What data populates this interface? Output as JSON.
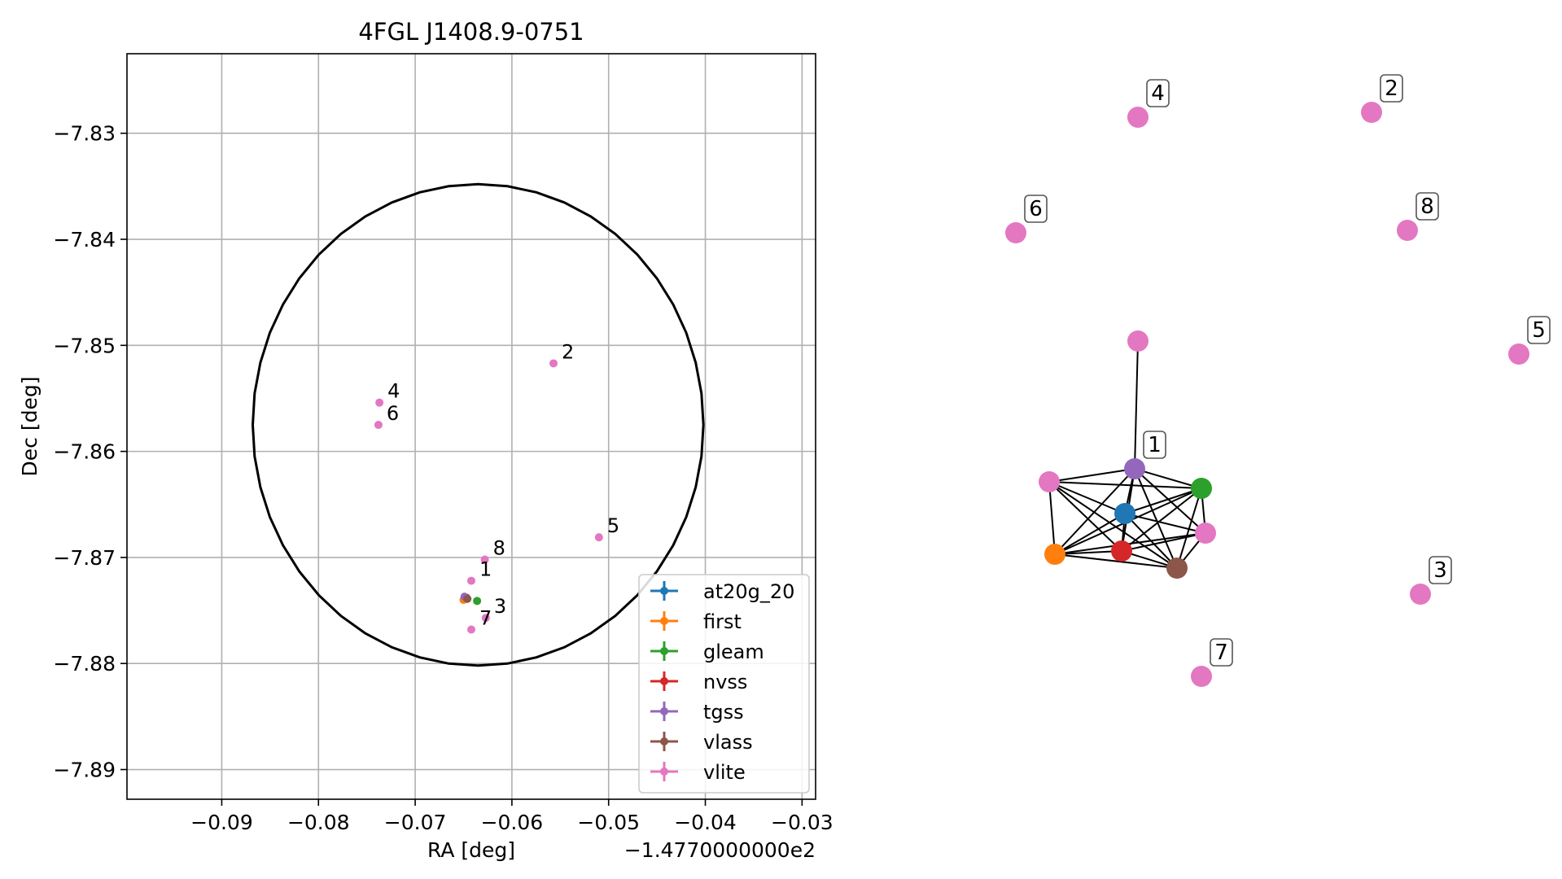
{
  "chart_data": [
    {
      "type": "scatter",
      "title": "4FGL J1408.9-0751",
      "xlabel": "RA [deg]",
      "ylabel": "Dec [deg]",
      "x_offset_label": "−1.4770000000e2",
      "xlim": [
        -0.0998,
        -0.0286
      ],
      "ylim": [
        -7.8928,
        -7.8225
      ],
      "x_ticks": [
        -0.09,
        -0.08,
        -0.07,
        -0.06,
        -0.05,
        -0.04,
        -0.03
      ],
      "x_tick_labels": [
        "−0.09",
        "−0.08",
        "−0.07",
        "−0.06",
        "−0.05",
        "−0.04",
        "−0.03"
      ],
      "y_ticks": [
        -7.83,
        -7.84,
        -7.85,
        -7.86,
        -7.87,
        -7.88,
        -7.89
      ],
      "y_tick_labels": [
        "−7.83",
        "−7.84",
        "−7.85",
        "−7.86",
        "−7.87",
        "−7.88",
        "−7.89"
      ],
      "grid": true,
      "legend_placement": "lower-right",
      "ellipse": {
        "center_x": -0.0635,
        "center_y": -7.8575,
        "semi_x": 0.0233,
        "semi_y": 0.0227
      },
      "series": [
        {
          "name": "at20g_20",
          "color": "#1f77b4",
          "points": []
        },
        {
          "name": "first",
          "color": "#ff7f0e",
          "points": [
            {
              "x": -0.065,
              "y": -7.874
            }
          ]
        },
        {
          "name": "gleam",
          "color": "#2ca02c",
          "points": [
            {
              "x": -0.0636,
              "y": -7.8741
            }
          ]
        },
        {
          "name": "nvss",
          "color": "#d62728",
          "points": [
            {
              "x": -0.0647,
              "y": -7.8738
            }
          ]
        },
        {
          "name": "tgss",
          "color": "#9467bd",
          "points": [
            {
              "x": -0.0649,
              "y": -7.8737
            }
          ]
        },
        {
          "name": "vlass",
          "color": "#8c564b",
          "points": [
            {
              "x": -0.0646,
              "y": -7.8739
            }
          ]
        },
        {
          "name": "vlite",
          "color": "#e377c2",
          "points": [
            {
              "x": -0.0642,
              "y": -7.8722,
              "label": "1"
            },
            {
              "x": -0.0557,
              "y": -7.8517,
              "label": "2"
            },
            {
              "x": -0.0627,
              "y": -7.8757,
              "label": "3"
            },
            {
              "x": -0.0737,
              "y": -7.8554,
              "label": "4"
            },
            {
              "x": -0.051,
              "y": -7.8681,
              "label": "5"
            },
            {
              "x": -0.0738,
              "y": -7.8575,
              "label": "6"
            },
            {
              "x": -0.0642,
              "y": -7.8768,
              "label": "7"
            },
            {
              "x": -0.0628,
              "y": -7.8702,
              "label": "8"
            },
            {
              "x": -0.0648,
              "y": -7.8738
            }
          ]
        }
      ]
    },
    {
      "type": "network",
      "nodes": [
        {
          "id": "at20g",
          "color": "#1f77b4"
        },
        {
          "id": "first",
          "color": "#ff7f0e"
        },
        {
          "id": "gleam",
          "color": "#2ca02c"
        },
        {
          "id": "nvss",
          "color": "#d62728"
        },
        {
          "id": "tgss",
          "color": "#9467bd",
          "label": "1"
        },
        {
          "id": "vlass",
          "color": "#8c564b"
        },
        {
          "id": "vliteA",
          "color": "#e377c2"
        },
        {
          "id": "vliteB",
          "color": "#e377c2"
        },
        {
          "id": "vliteC",
          "color": "#e377c2"
        },
        {
          "id": "v2",
          "color": "#e377c2",
          "label": "2"
        },
        {
          "id": "v3",
          "color": "#e377c2",
          "label": "3"
        },
        {
          "id": "v4",
          "color": "#e377c2",
          "label": "4"
        },
        {
          "id": "v5",
          "color": "#e377c2",
          "label": "5"
        },
        {
          "id": "v6",
          "color": "#e377c2",
          "label": "6"
        },
        {
          "id": "v7",
          "color": "#e377c2",
          "label": "7"
        },
        {
          "id": "v8",
          "color": "#e377c2",
          "label": "8"
        }
      ],
      "edges": [
        [
          "tgss",
          "vliteC"
        ],
        [
          "tgss",
          "vliteA"
        ],
        [
          "tgss",
          "gleam"
        ],
        [
          "tgss",
          "at20g"
        ],
        [
          "tgss",
          "nvss"
        ],
        [
          "tgss",
          "vlass"
        ],
        [
          "tgss",
          "vliteB"
        ],
        [
          "tgss",
          "first"
        ],
        [
          "vliteA",
          "at20g"
        ],
        [
          "vliteA",
          "nvss"
        ],
        [
          "vliteA",
          "vlass"
        ],
        [
          "vliteA",
          "first"
        ],
        [
          "vliteA",
          "gleam"
        ],
        [
          "gleam",
          "at20g"
        ],
        [
          "gleam",
          "nvss"
        ],
        [
          "gleam",
          "vlass"
        ],
        [
          "gleam",
          "vliteB"
        ],
        [
          "gleam",
          "first"
        ],
        [
          "at20g",
          "first"
        ],
        [
          "at20g",
          "nvss"
        ],
        [
          "at20g",
          "vlass"
        ],
        [
          "at20g",
          "vliteB"
        ],
        [
          "first",
          "nvss"
        ],
        [
          "first",
          "vliteB"
        ],
        [
          "first",
          "vlass"
        ],
        [
          "nvss",
          "vlass"
        ],
        [
          "nvss",
          "vliteB"
        ],
        [
          "vlass",
          "vliteB"
        ]
      ]
    }
  ]
}
